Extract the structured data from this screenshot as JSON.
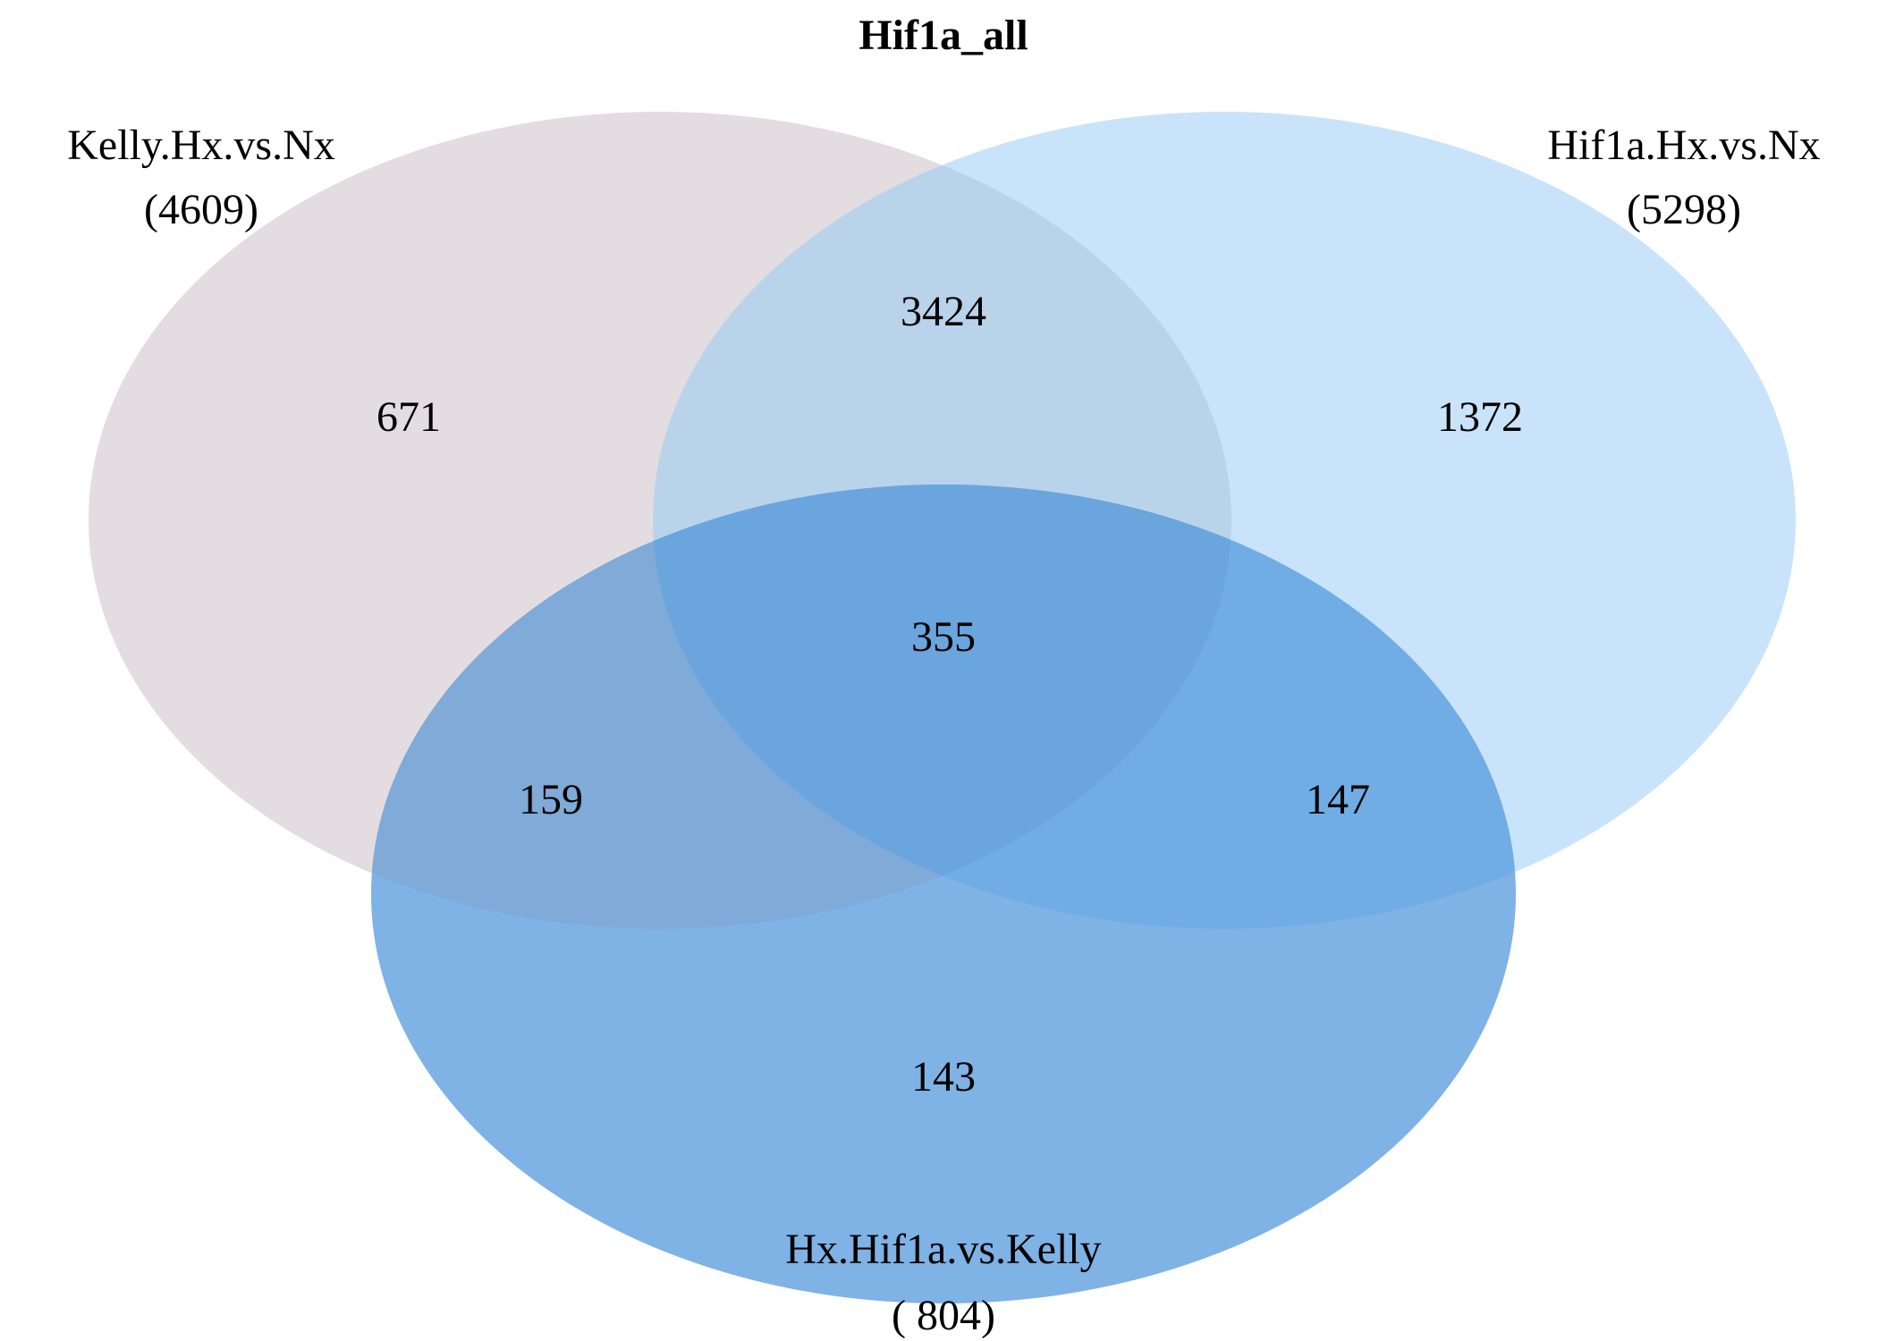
{
  "title": "Hif1a_all",
  "sets": [
    {
      "key": "A",
      "name": "Kelly.Hx.vs.Nx",
      "total": "(4609)",
      "color": "#E3DCE1"
    },
    {
      "key": "B",
      "name": "Hif1a.Hx.vs.Nx",
      "total": "(5298)",
      "color": "#C9E3FA"
    },
    {
      "key": "C",
      "name": "Hx.Hif1a.vs.Kelly",
      "total": "( 804)",
      "color": "#7FB2E5"
    }
  ],
  "regions": {
    "a_only": "671",
    "b_only": "1372",
    "c_only": "143",
    "ab": "3424",
    "ac": "159",
    "bc": "147",
    "abc": "355"
  },
  "colors": {
    "overlap_ab": "#B9D3EB",
    "overlap_ac": "#80AAD7",
    "overlap_bc": "#70ADE5",
    "overlap_abc": "#6AA5DE"
  }
}
